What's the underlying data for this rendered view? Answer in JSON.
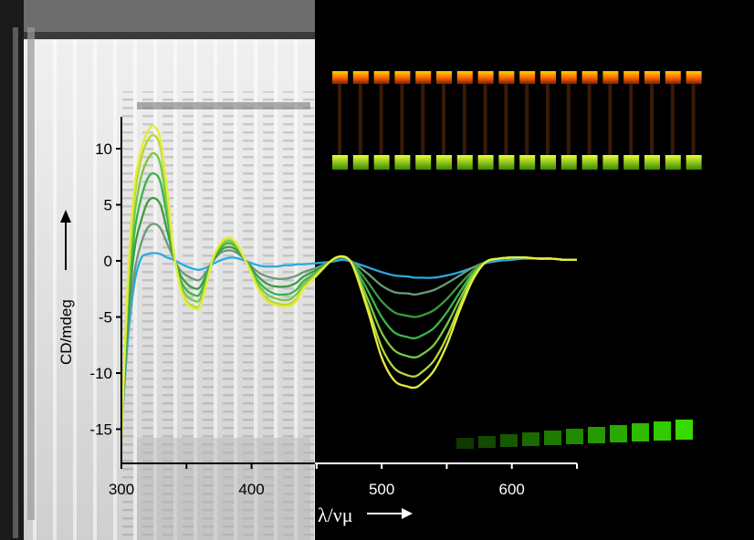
{
  "chart_data": {
    "type": "line",
    "xlim": [
      300,
      650
    ],
    "ylim": [
      -17,
      12
    ],
    "ylabel": "CD/mdeg",
    "xlabel": "λ/νμ",
    "x_ticks": [
      300,
      400,
      500,
      600
    ],
    "y_ticks": [
      10,
      5,
      0,
      -5,
      -10,
      -15
    ],
    "grid": false,
    "legend": "none",
    "x": [
      300,
      305,
      310,
      315,
      320,
      325,
      330,
      335,
      340,
      345,
      350,
      355,
      360,
      365,
      370,
      375,
      380,
      385,
      390,
      395,
      400,
      405,
      410,
      415,
      420,
      425,
      430,
      435,
      440,
      450,
      460,
      465,
      470,
      475,
      480,
      490,
      500,
      510,
      520,
      525,
      530,
      540,
      550,
      560,
      570,
      580,
      590,
      600,
      610,
      620,
      630,
      640,
      650
    ],
    "series": [
      {
        "color": "#29abe2",
        "values": [
          -15,
          -7,
          -2,
          0.2,
          0.6,
          0.7,
          0.6,
          0.3,
          0.1,
          -0.2,
          -0.5,
          -0.7,
          -0.8,
          -0.6,
          -0.3,
          0,
          0.2,
          0.3,
          0.2,
          0,
          -0.2,
          -0.4,
          -0.5,
          -0.5,
          -0.5,
          -0.4,
          -0.4,
          -0.3,
          -0.3,
          -0.2,
          -0.1,
          0,
          0.1,
          0,
          -0.2,
          -0.6,
          -1.0,
          -1.3,
          -1.4,
          -1.5,
          -1.5,
          -1.5,
          -1.3,
          -1.0,
          -0.6,
          -0.2,
          0,
          0.1,
          0.2,
          0.2,
          0.2,
          0.1,
          0.1
        ]
      },
      {
        "color": "#6a9a78",
        "values": [
          -15,
          -6,
          -1,
          1.5,
          2.9,
          3.3,
          2.9,
          1.6,
          0.3,
          -0.8,
          -1.3,
          -1.6,
          -1.7,
          -1.0,
          -0.1,
          0.6,
          0.9,
          0.9,
          0.6,
          0.1,
          -0.5,
          -1.0,
          -1.3,
          -1.5,
          -1.6,
          -1.6,
          -1.5,
          -1.3,
          -1.0,
          -0.6,
          -0.1,
          0.2,
          0.3,
          0.1,
          -0.3,
          -1.2,
          -2.2,
          -2.8,
          -2.9,
          -3.0,
          -2.9,
          -2.6,
          -2.0,
          -1.3,
          -0.6,
          -0.1,
          0.2,
          0.3,
          0.3,
          0.2,
          0.2,
          0.1,
          0.1
        ]
      },
      {
        "color": "#3f9a3d",
        "values": [
          -15,
          -5,
          1,
          3.5,
          5.2,
          5.6,
          5.0,
          2.8,
          0.4,
          -1.2,
          -2.0,
          -2.4,
          -2.4,
          -1.3,
          0,
          0.8,
          1.2,
          1.2,
          0.8,
          0.1,
          -0.7,
          -1.4,
          -1.9,
          -2.2,
          -2.3,
          -2.3,
          -2.2,
          -1.9,
          -1.4,
          -0.8,
          -0.1,
          0.2,
          0.4,
          0.1,
          -0.5,
          -2.0,
          -3.6,
          -4.6,
          -4.9,
          -5.0,
          -4.9,
          -4.4,
          -3.4,
          -2.1,
          -0.9,
          -0.1,
          0.2,
          0.3,
          0.3,
          0.2,
          0.2,
          0.1,
          0.1
        ]
      },
      {
        "color": "#39b54a",
        "values": [
          -15,
          -4,
          2.5,
          5.5,
          7.3,
          7.8,
          7.0,
          4.0,
          0.6,
          -1.6,
          -2.6,
          -3.0,
          -3.0,
          -1.6,
          0.1,
          1.0,
          1.5,
          1.5,
          1.0,
          0.1,
          -0.9,
          -1.8,
          -2.4,
          -2.8,
          -3.0,
          -3.0,
          -2.9,
          -2.5,
          -1.8,
          -1.0,
          -0.1,
          0.3,
          0.4,
          0.1,
          -0.7,
          -2.8,
          -5.0,
          -6.4,
          -6.8,
          -6.9,
          -6.7,
          -6.0,
          -4.6,
          -2.8,
          -1.1,
          -0.1,
          0.2,
          0.3,
          0.3,
          0.2,
          0.2,
          0.1,
          0.1
        ]
      },
      {
        "color": "#7ac943",
        "values": [
          -15,
          -3,
          4,
          7.4,
          9.0,
          9.6,
          8.6,
          5.0,
          0.8,
          -1.9,
          -3.1,
          -3.5,
          -3.5,
          -1.9,
          0.1,
          1.2,
          1.7,
          1.7,
          1.1,
          0.1,
          -1.0,
          -2.1,
          -2.8,
          -3.2,
          -3.4,
          -3.5,
          -3.4,
          -2.9,
          -2.1,
          -1.1,
          -0.1,
          0.3,
          0.4,
          0.1,
          -0.9,
          -3.6,
          -6.4,
          -8.0,
          -8.5,
          -8.6,
          -8.4,
          -7.5,
          -5.7,
          -3.4,
          -1.3,
          -0.1,
          0.2,
          0.3,
          0.3,
          0.2,
          0.2,
          0.1,
          0.1
        ]
      },
      {
        "color": "#b5d83a",
        "values": [
          -15,
          -2,
          5.5,
          9.0,
          10.7,
          11.2,
          10.1,
          6.0,
          1.0,
          -2.2,
          -3.6,
          -4.0,
          -4.0,
          -2.2,
          0.1,
          1.3,
          1.9,
          1.9,
          1.2,
          0.1,
          -1.1,
          -2.4,
          -3.2,
          -3.6,
          -3.8,
          -3.9,
          -3.8,
          -3.3,
          -2.4,
          -1.2,
          -0.1,
          0.3,
          0.4,
          0.1,
          -1.0,
          -4.3,
          -7.7,
          -9.6,
          -10.2,
          -10.3,
          -10.0,
          -8.9,
          -6.8,
          -4.0,
          -1.5,
          -0.1,
          0.2,
          0.3,
          0.3,
          0.2,
          0.2,
          0.1,
          0.1
        ]
      },
      {
        "color": "#e6ec3e",
        "values": [
          -16,
          -1.5,
          6.5,
          9.8,
          11.5,
          12.0,
          10.8,
          6.5,
          1.1,
          -2.3,
          -3.8,
          -4.2,
          -4.2,
          -2.3,
          0.1,
          1.4,
          2.0,
          2.0,
          1.3,
          0.1,
          -1.2,
          -2.5,
          -3.4,
          -3.8,
          -4.0,
          -4.1,
          -4.0,
          -3.5,
          -2.5,
          -1.3,
          -0.1,
          0.3,
          0.4,
          0.1,
          -1.1,
          -4.7,
          -8.6,
          -10.7,
          -11.2,
          -11.3,
          -11.0,
          -9.8,
          -7.5,
          -4.4,
          -1.7,
          -0.1,
          0.2,
          0.3,
          0.3,
          0.2,
          0.2,
          0.1,
          0.1
        ]
      }
    ]
  }
}
